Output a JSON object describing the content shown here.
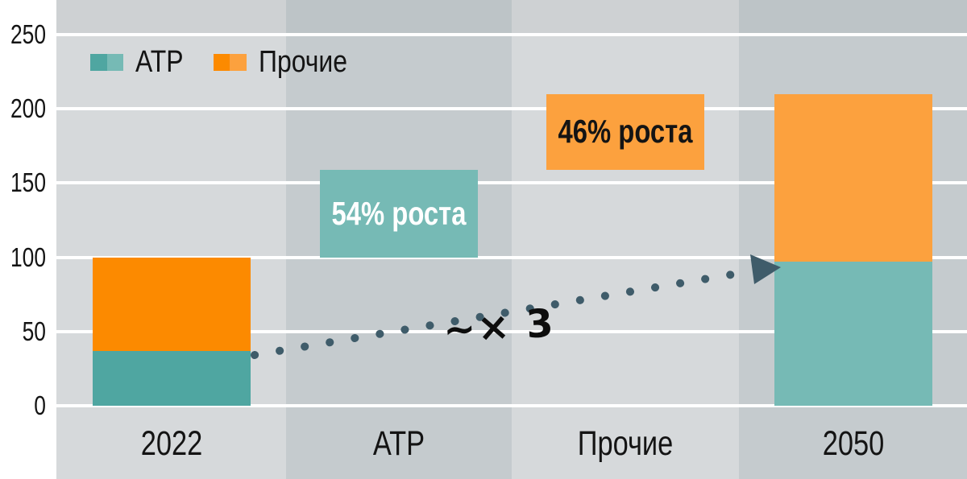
{
  "palette": {
    "teal_dark": "#4FA6A1",
    "teal_light": "#76BAB5",
    "orange_dark": "#FC8A00",
    "orange_light": "#FCA13E",
    "band_light": "#D6D9DB",
    "band_dark": "#C5CBCE",
    "gridline": "#FFFFFF",
    "arrow": "#3F5C6A",
    "text": "#141414"
  },
  "chart_data": {
    "type": "bar",
    "subtype": "stacked-bar growth waterfall",
    "title": "",
    "x_categories": [
      "2022",
      "АТР",
      "Прочие",
      "2050"
    ],
    "y_axis": {
      "ticks": [
        0,
        50,
        100,
        150,
        200,
        250
      ],
      "range": [
        0,
        250
      ],
      "gridlines": "white horizontal lines"
    },
    "legend": {
      "position": "top-left",
      "items": [
        {
          "label": "АТР",
          "swatch_colors": [
            "teal_dark",
            "teal_light"
          ]
        },
        {
          "label": "Прочие",
          "swatch_colors": [
            "orange_dark",
            "orange_light"
          ]
        }
      ]
    },
    "bars": [
      {
        "category": "2022",
        "segments": [
          {
            "series": "АТР",
            "from": 0,
            "to": 37,
            "color": "teal_dark"
          },
          {
            "series": "Прочие",
            "from": 37,
            "to": 100,
            "color": "orange_dark"
          }
        ]
      },
      {
        "category": "АТР",
        "segments": [
          {
            "series": "АТР",
            "from": 100,
            "to": 159,
            "color": "teal_light",
            "label": "54% роста",
            "label_color": "#FFFFFF"
          }
        ]
      },
      {
        "category": "Прочие",
        "segments": [
          {
            "series": "Прочие",
            "from": 159,
            "to": 210,
            "color": "orange_light",
            "label": "46% роста",
            "label_color": "#141414"
          }
        ]
      },
      {
        "category": "2050",
        "segments": [
          {
            "series": "АТР",
            "from": 0,
            "to": 97,
            "color": "teal_light"
          },
          {
            "series": "Прочие",
            "from": 97,
            "to": 210,
            "color": "orange_light"
          }
        ]
      }
    ],
    "annotation": {
      "text": "~× 3",
      "style": "handwritten",
      "arrow": "dotted arrow from top of 2022 АТР segment to top of 2050 АТР segment"
    }
  }
}
